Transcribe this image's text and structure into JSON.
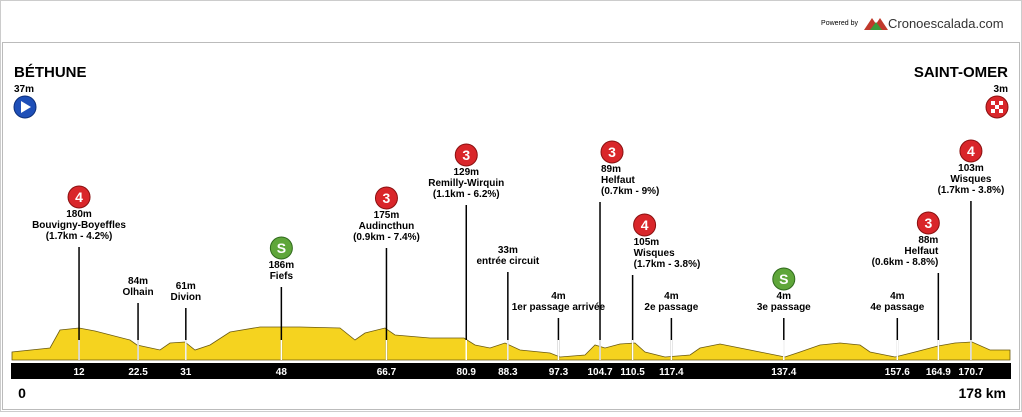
{
  "header": {
    "powered_by": "Powered by",
    "brand": "Cronoescalada.com"
  },
  "start": {
    "name": "BÉTHUNE",
    "altitude": "37m",
    "km": "0"
  },
  "finish": {
    "name": "SAINT-OMER",
    "altitude": "3m",
    "km": "178 km"
  },
  "points": [
    {
      "km": 12,
      "badge": "4",
      "lines": [
        "180m",
        "Bouvigny-Boyeffles",
        "(1.7km - 4.2%)"
      ]
    },
    {
      "km": 22.5,
      "lines": [
        "84m",
        "Olhain"
      ]
    },
    {
      "km": 31,
      "lines": [
        "61m",
        "Divion"
      ]
    },
    {
      "km": 48,
      "badge": "S",
      "lines": [
        "186m",
        "Fiefs"
      ]
    },
    {
      "km": 66.7,
      "badge": "3",
      "lines": [
        "175m",
        "Audincthun",
        "(0.9km - 7.4%)"
      ]
    },
    {
      "km": 80.9,
      "badge": "3",
      "lines": [
        "129m",
        "Remilly-Wirquin",
        "(1.1km - 6.2%)"
      ]
    },
    {
      "km": 88.3,
      "lines": [
        "33m",
        "entrée circuit"
      ]
    },
    {
      "km": 97.3,
      "lines": [
        "4m",
        "1er passage arrivée"
      ]
    },
    {
      "km": 104.7,
      "badge": "3",
      "lines": [
        "89m",
        "Helfaut",
        "(0.7km - 9%)"
      ]
    },
    {
      "km": 110.5,
      "badge": "4",
      "lines": [
        "105m",
        "Wisques",
        "(1.7km - 3.8%)"
      ]
    },
    {
      "km": 117.4,
      "lines": [
        "4m",
        "2e passage"
      ]
    },
    {
      "km": 137.4,
      "badge": "S",
      "lines": [
        "4m",
        "3e passage"
      ]
    },
    {
      "km": 157.6,
      "lines": [
        "4m",
        "4e passage"
      ]
    },
    {
      "km": 164.9,
      "badge": "3",
      "lines": [
        "88m",
        "Helfaut",
        "(0.6km - 8.8%)"
      ]
    },
    {
      "km": 170.7,
      "badge": "4",
      "lines": [
        "103m",
        "Wisques",
        "(1.7km - 3.8%)"
      ]
    }
  ]
}
